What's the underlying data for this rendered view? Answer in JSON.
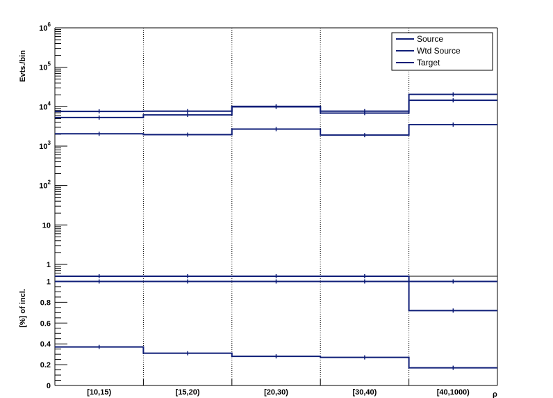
{
  "chart_data": [
    {
      "type": "histogram",
      "panel": "upper",
      "ylabel": "Evts./bin",
      "yscale": "log",
      "ylim": [
        0.5,
        1000000
      ],
      "yticks": [
        {
          "value": 1,
          "base": "1",
          "exp": ""
        },
        {
          "value": 10,
          "base": "10",
          "exp": ""
        },
        {
          "value": 100,
          "base": "10",
          "exp": "2"
        },
        {
          "value": 1000,
          "base": "10",
          "exp": "3"
        },
        {
          "value": 10000,
          "base": "10",
          "exp": "4"
        },
        {
          "value": 100000,
          "base": "10",
          "exp": "5"
        },
        {
          "value": 1000000,
          "base": "10",
          "exp": "6"
        }
      ],
      "categories": [
        "[10,15)",
        "[15,20)",
        "[20,30)",
        "[30,40)",
        "[40,1000)"
      ],
      "legend_position": "top-right",
      "series": [
        {
          "name": "Source",
          "values": [
            7600,
            7700,
            10200,
            7700,
            20500
          ]
        },
        {
          "name": "Wtd Source",
          "values": [
            5300,
            6200,
            9900,
            6900,
            14500
          ]
        },
        {
          "name": "Target",
          "values": [
            2050,
            1950,
            2700,
            1900,
            3500
          ]
        }
      ]
    },
    {
      "type": "histogram",
      "panel": "lower",
      "ylabel": "[%] of incl.",
      "xlabel": "ρ",
      "ylim": [
        0,
        1.05
      ],
      "yticks": [
        "0",
        "0.2",
        "0.4",
        "0.6",
        "0.8",
        "1"
      ],
      "categories": [
        "[10,15)",
        "[15,20)",
        "[20,30)",
        "[30,40)",
        "[40,1000)"
      ],
      "series": [
        {
          "values": [
            1.05,
            1.05,
            1.05,
            1.05,
            1.0
          ]
        },
        {
          "values": [
            1.0,
            1.0,
            1.0,
            1.0,
            0.72
          ]
        },
        {
          "values": [
            0.37,
            0.31,
            0.28,
            0.27,
            0.17
          ]
        }
      ]
    }
  ],
  "colors": {
    "line": "#0f1e78"
  }
}
